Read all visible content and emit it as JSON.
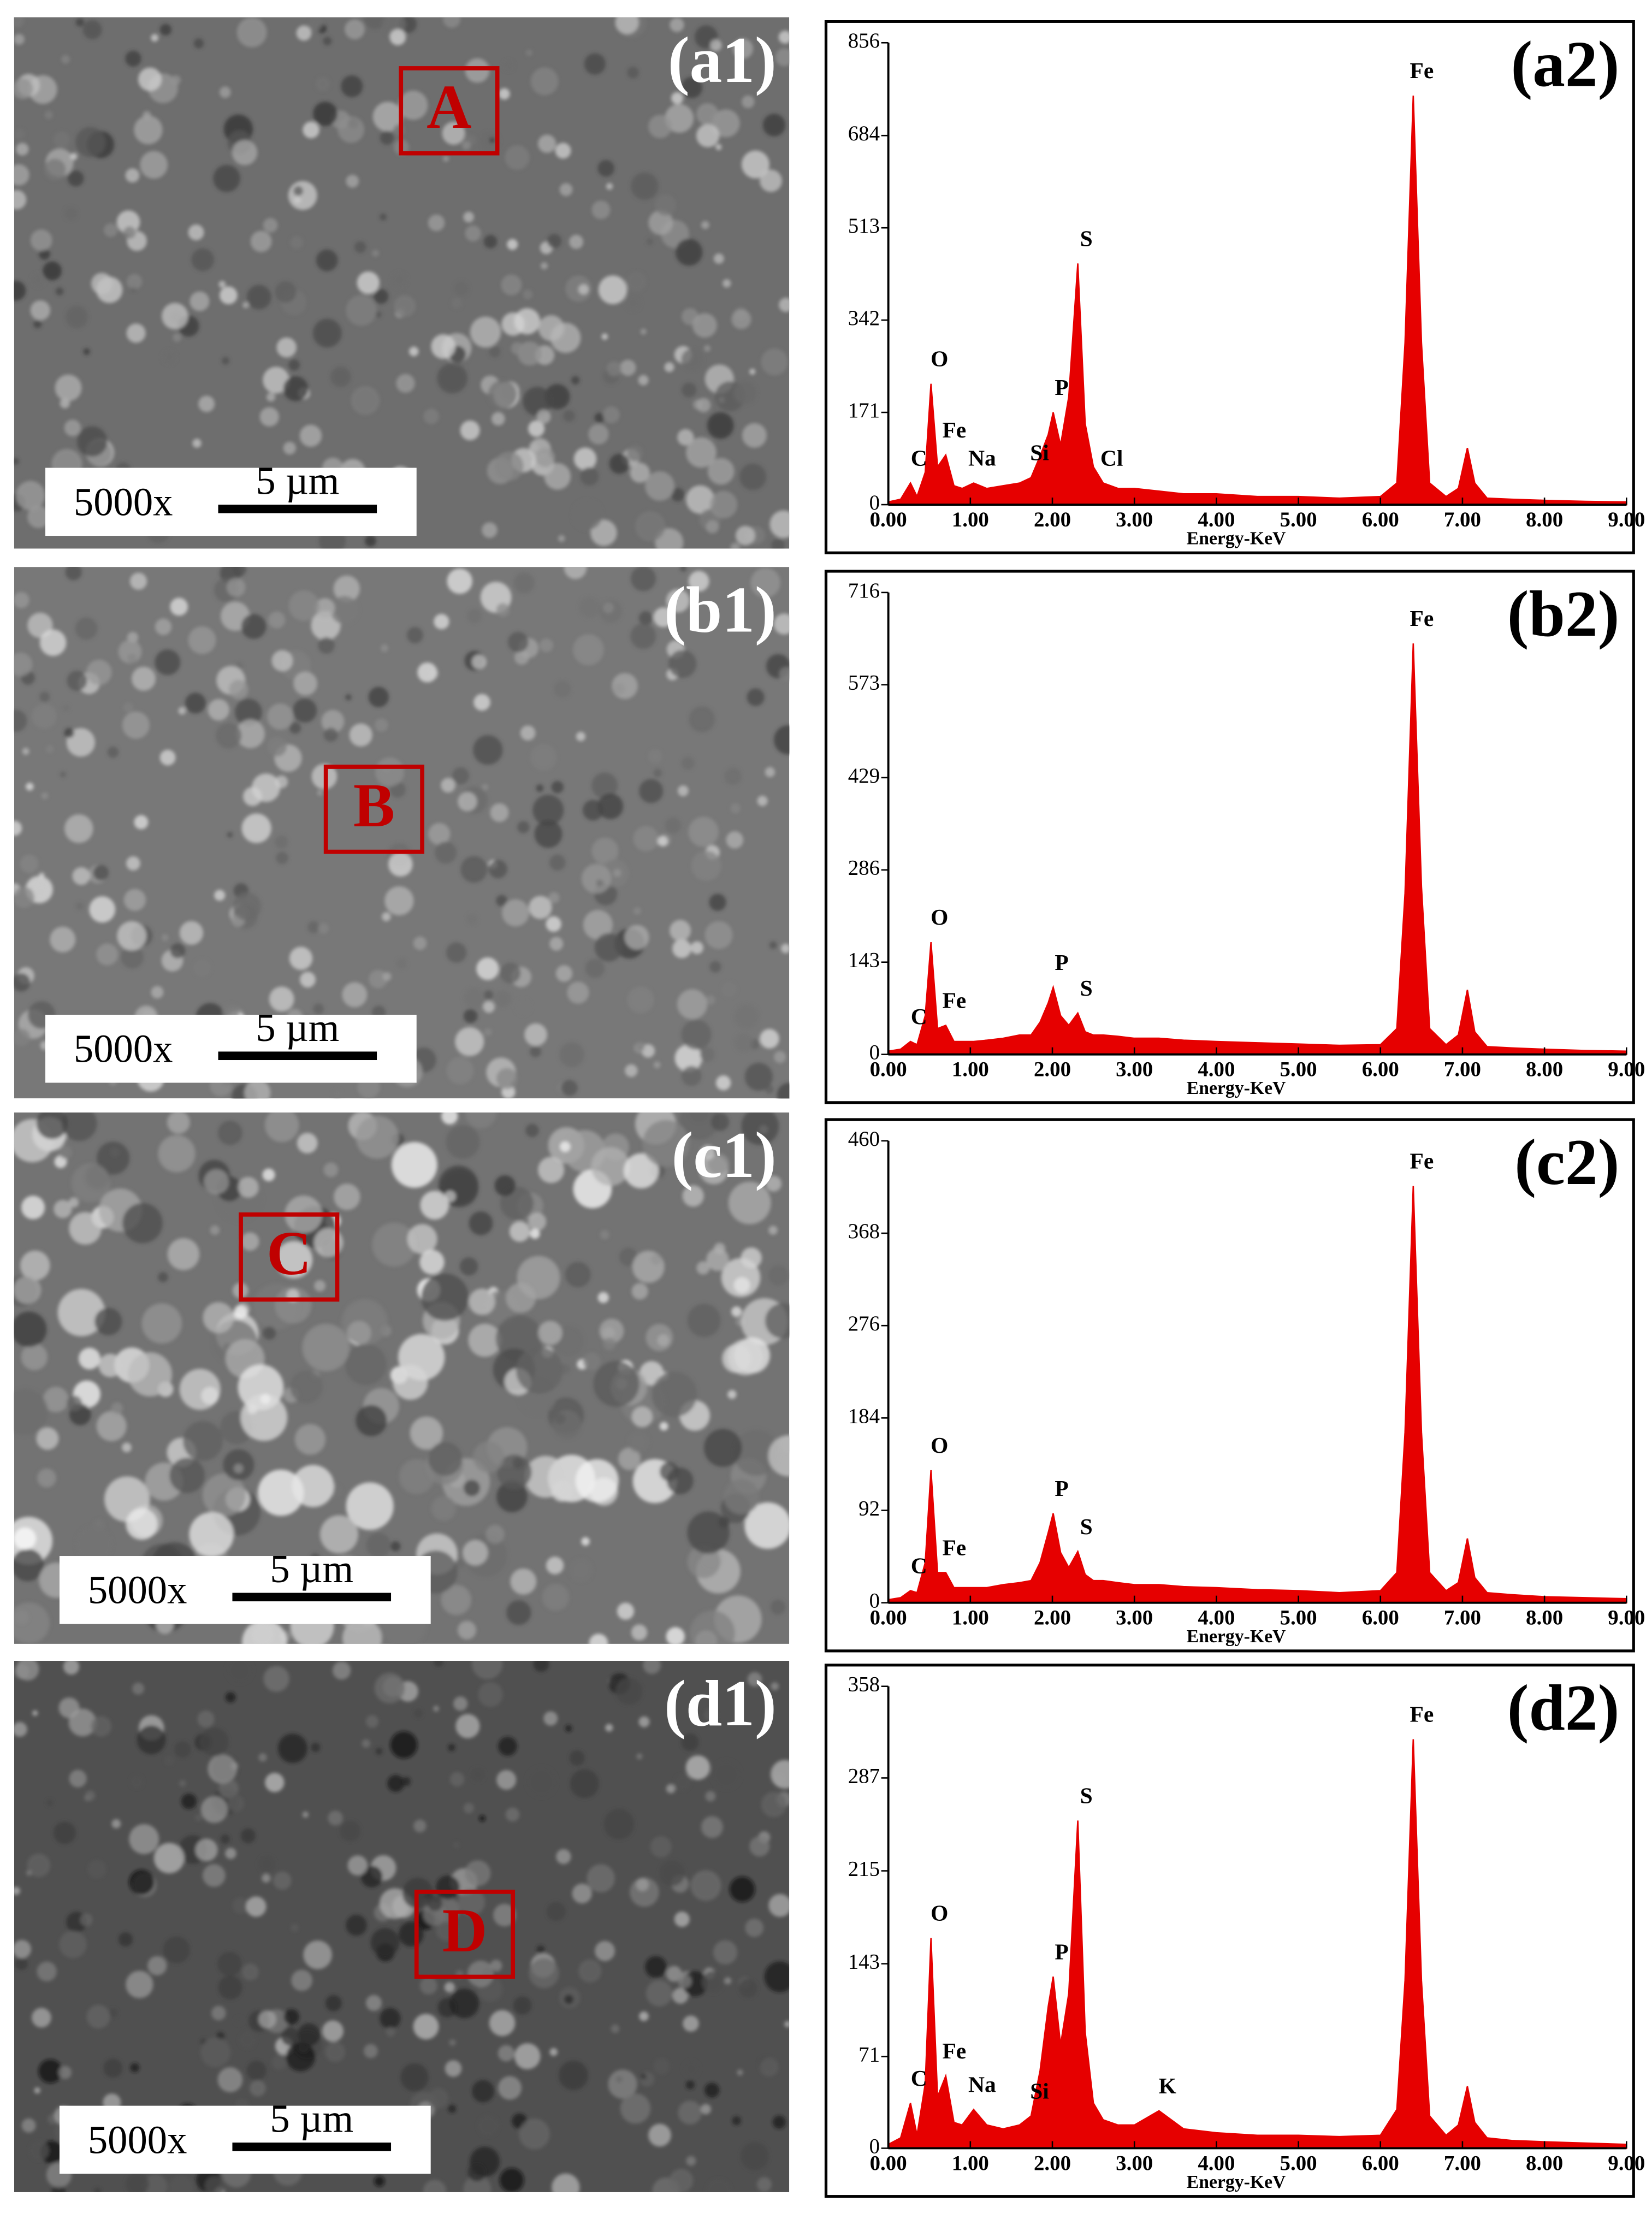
{
  "figure": {
    "images": [
      {
        "label": "(a1)",
        "marker": "A",
        "magnification": "5000x",
        "scale_bar": "5 µm"
      },
      {
        "label": "(b1)",
        "marker": "B",
        "magnification": "5000x",
        "scale_bar": "5 µm"
      },
      {
        "label": "(c1)",
        "marker": "C",
        "magnification": "5000x",
        "scale_bar": "5 µm"
      },
      {
        "label": "(d1)",
        "marker": "D",
        "magnification": "5000x",
        "scale_bar": "5 µm"
      }
    ]
  },
  "chart_data": [
    {
      "type": "area",
      "title": "(a2)",
      "x_label": "Energy-KeV",
      "color": "#e60000",
      "xlim": [
        0,
        9
      ],
      "xticks": [
        {
          "value": 0,
          "label": "0.00"
        },
        {
          "value": 1,
          "label": "1.00"
        },
        {
          "value": 2,
          "label": "2.00"
        },
        {
          "value": 3,
          "label": "3.00"
        },
        {
          "value": 4,
          "label": "4.00"
        },
        {
          "value": 5,
          "label": "5.00"
        },
        {
          "value": 6,
          "label": "6.00"
        },
        {
          "value": 7,
          "label": "7.00"
        },
        {
          "value": 8,
          "label": "8.00"
        },
        {
          "value": 9,
          "label": "9.00"
        }
      ],
      "ylim": [
        0,
        856
      ],
      "yticks": [
        0,
        171,
        342,
        513,
        684,
        856
      ],
      "x": [
        0.0,
        0.15,
        0.27,
        0.35,
        0.45,
        0.52,
        0.6,
        0.7,
        0.8,
        0.9,
        1.04,
        1.2,
        1.4,
        1.6,
        1.74,
        1.85,
        1.95,
        2.01,
        2.1,
        2.2,
        2.31,
        2.4,
        2.5,
        2.62,
        2.8,
        3.0,
        3.3,
        3.6,
        4.0,
        4.5,
        5.0,
        5.5,
        6.0,
        6.2,
        6.3,
        6.4,
        6.5,
        6.6,
        6.8,
        6.95,
        7.06,
        7.15,
        7.3,
        7.6,
        8.0,
        8.5,
        9.0
      ],
      "values": [
        5,
        10,
        40,
        15,
        60,
        224,
        70,
        92,
        35,
        30,
        40,
        30,
        35,
        40,
        50,
        90,
        130,
        171,
        110,
        200,
        447,
        150,
        70,
        40,
        30,
        30,
        25,
        20,
        20,
        15,
        15,
        12,
        15,
        40,
        300,
        758,
        300,
        40,
        15,
        30,
        105,
        40,
        12,
        10,
        8,
        6,
        5
      ],
      "annotations": [
        {
          "text": "C",
          "x": 0.27,
          "y": 40
        },
        {
          "text": "O",
          "x": 0.52,
          "y": 224
        },
        {
          "text": "Fe",
          "x": 0.7,
          "y": 92
        },
        {
          "text": "Na",
          "x": 1.04,
          "y": 40
        },
        {
          "text": "Si",
          "x": 1.74,
          "y": 50
        },
        {
          "text": "P",
          "x": 2.01,
          "y": 171
        },
        {
          "text": "S",
          "x": 2.31,
          "y": 447
        },
        {
          "text": "Cl",
          "x": 2.62,
          "y": 40
        },
        {
          "text": "Fe",
          "x": 6.4,
          "y": 758
        }
      ]
    },
    {
      "type": "area",
      "title": "(b2)",
      "x_label": "Energy-KeV",
      "color": "#e60000",
      "xlim": [
        0,
        9
      ],
      "xticks": [
        {
          "value": 0,
          "label": "0.00"
        },
        {
          "value": 1,
          "label": "1.00"
        },
        {
          "value": 2,
          "label": "2.00"
        },
        {
          "value": 3,
          "label": "3.00"
        },
        {
          "value": 4,
          "label": "4.00"
        },
        {
          "value": 5,
          "label": "5.00"
        },
        {
          "value": 6,
          "label": "6.00"
        },
        {
          "value": 7,
          "label": "7.00"
        },
        {
          "value": 8,
          "label": "8.00"
        },
        {
          "value": 9,
          "label": "9.00"
        }
      ],
      "ylim": [
        0,
        716
      ],
      "yticks": [
        0,
        143,
        286,
        429,
        573,
        716
      ],
      "x": [
        0.0,
        0.15,
        0.27,
        0.35,
        0.45,
        0.52,
        0.6,
        0.7,
        0.8,
        0.9,
        1.04,
        1.2,
        1.4,
        1.6,
        1.74,
        1.85,
        1.95,
        2.01,
        2.1,
        2.2,
        2.31,
        2.4,
        2.5,
        2.62,
        2.8,
        3.0,
        3.3,
        3.6,
        4.0,
        4.5,
        5.0,
        5.5,
        6.0,
        6.2,
        6.3,
        6.4,
        6.5,
        6.6,
        6.8,
        6.95,
        7.06,
        7.15,
        7.3,
        7.6,
        8.0,
        8.5,
        9.0
      ],
      "values": [
        5,
        8,
        20,
        15,
        60,
        174,
        40,
        45,
        20,
        20,
        20,
        22,
        25,
        30,
        30,
        50,
        80,
        104,
        60,
        45,
        64,
        35,
        30,
        30,
        28,
        25,
        25,
        22,
        20,
        18,
        16,
        14,
        15,
        40,
        250,
        637,
        260,
        40,
        15,
        30,
        100,
        35,
        12,
        10,
        8,
        6,
        5
      ],
      "annotations": [
        {
          "text": "C",
          "x": 0.27,
          "y": 20
        },
        {
          "text": "O",
          "x": 0.52,
          "y": 174
        },
        {
          "text": "Fe",
          "x": 0.7,
          "y": 45
        },
        {
          "text": "P",
          "x": 2.01,
          "y": 104
        },
        {
          "text": "S",
          "x": 2.31,
          "y": 64
        },
        {
          "text": "Fe",
          "x": 6.4,
          "y": 637
        }
      ]
    },
    {
      "type": "area",
      "title": "(c2)",
      "x_label": "Energy-KeV",
      "color": "#e60000",
      "xlim": [
        0,
        9
      ],
      "xticks": [
        {
          "value": 0,
          "label": "0.00"
        },
        {
          "value": 1,
          "label": "1.00"
        },
        {
          "value": 2,
          "label": "2.00"
        },
        {
          "value": 3,
          "label": "3.00"
        },
        {
          "value": 4,
          "label": "4.00"
        },
        {
          "value": 5,
          "label": "5.00"
        },
        {
          "value": 6,
          "label": "6.00"
        },
        {
          "value": 7,
          "label": "7.00"
        },
        {
          "value": 8,
          "label": "8.00"
        },
        {
          "value": 9,
          "label": "9.00"
        }
      ],
      "ylim": [
        0,
        460
      ],
      "yticks": [
        0,
        92,
        184,
        276,
        368,
        460
      ],
      "x": [
        0.0,
        0.15,
        0.27,
        0.35,
        0.45,
        0.52,
        0.6,
        0.7,
        0.8,
        0.9,
        1.04,
        1.2,
        1.4,
        1.6,
        1.74,
        1.85,
        1.95,
        2.01,
        2.1,
        2.2,
        2.31,
        2.4,
        2.5,
        2.62,
        2.8,
        3.0,
        3.3,
        3.6,
        4.0,
        4.5,
        5.0,
        5.5,
        6.0,
        6.2,
        6.3,
        6.4,
        6.5,
        6.6,
        6.8,
        6.95,
        7.06,
        7.15,
        7.3,
        7.6,
        8.0,
        8.5,
        9.0
      ],
      "values": [
        3,
        5,
        12,
        10,
        40,
        132,
        30,
        30,
        15,
        15,
        15,
        15,
        18,
        20,
        22,
        40,
        70,
        89,
        50,
        35,
        51,
        28,
        22,
        22,
        20,
        18,
        18,
        16,
        15,
        13,
        12,
        10,
        12,
        30,
        170,
        415,
        170,
        30,
        12,
        20,
        64,
        25,
        10,
        8,
        6,
        5,
        4
      ],
      "annotations": [
        {
          "text": "C",
          "x": 0.27,
          "y": 12
        },
        {
          "text": "O",
          "x": 0.52,
          "y": 132
        },
        {
          "text": "Fe",
          "x": 0.7,
          "y": 30
        },
        {
          "text": "P",
          "x": 2.01,
          "y": 89
        },
        {
          "text": "S",
          "x": 2.31,
          "y": 51
        },
        {
          "text": "Fe",
          "x": 6.4,
          "y": 415
        }
      ]
    },
    {
      "type": "area",
      "title": "(d2)",
      "x_label": "Energy-KeV",
      "color": "#e60000",
      "xlim": [
        0,
        9
      ],
      "xticks": [
        {
          "value": 0,
          "label": "0.00"
        },
        {
          "value": 1,
          "label": "1.00"
        },
        {
          "value": 2,
          "label": "2.00"
        },
        {
          "value": 3,
          "label": "3.00"
        },
        {
          "value": 4,
          "label": "4.00"
        },
        {
          "value": 5,
          "label": "5.00"
        },
        {
          "value": 6,
          "label": "6.00"
        },
        {
          "value": 7,
          "label": "7.00"
        },
        {
          "value": 8,
          "label": "8.00"
        },
        {
          "value": 9,
          "label": "9.00"
        }
      ],
      "ylim": [
        0,
        358
      ],
      "yticks": [
        0,
        71,
        143,
        215,
        287,
        358
      ],
      "x": [
        0.0,
        0.15,
        0.27,
        0.35,
        0.45,
        0.52,
        0.6,
        0.7,
        0.8,
        0.9,
        1.04,
        1.2,
        1.4,
        1.6,
        1.74,
        1.85,
        1.95,
        2.01,
        2.1,
        2.2,
        2.31,
        2.4,
        2.5,
        2.62,
        2.8,
        3.0,
        3.3,
        3.6,
        4.0,
        4.5,
        5.0,
        5.5,
        6.0,
        6.2,
        6.3,
        6.4,
        6.5,
        6.6,
        6.8,
        6.95,
        7.06,
        7.15,
        7.3,
        7.6,
        8.0,
        8.5,
        9.0
      ],
      "values": [
        3,
        8,
        35,
        10,
        50,
        163,
        40,
        56,
        20,
        18,
        30,
        18,
        15,
        18,
        25,
        60,
        110,
        133,
        80,
        120,
        254,
        90,
        35,
        22,
        18,
        18,
        29,
        15,
        12,
        10,
        10,
        9,
        10,
        30,
        130,
        317,
        130,
        25,
        10,
        18,
        48,
        20,
        8,
        6,
        5,
        4,
        3
      ],
      "annotations": [
        {
          "text": "C",
          "x": 0.27,
          "y": 35
        },
        {
          "text": "O",
          "x": 0.52,
          "y": 163
        },
        {
          "text": "Fe",
          "x": 0.7,
          "y": 56
        },
        {
          "text": "Na",
          "x": 1.04,
          "y": 30
        },
        {
          "text": "Si",
          "x": 1.74,
          "y": 25
        },
        {
          "text": "P",
          "x": 2.01,
          "y": 133
        },
        {
          "text": "S",
          "x": 2.31,
          "y": 254
        },
        {
          "text": "K",
          "x": 3.3,
          "y": 29
        },
        {
          "text": "Fe",
          "x": 6.4,
          "y": 317
        }
      ]
    }
  ]
}
